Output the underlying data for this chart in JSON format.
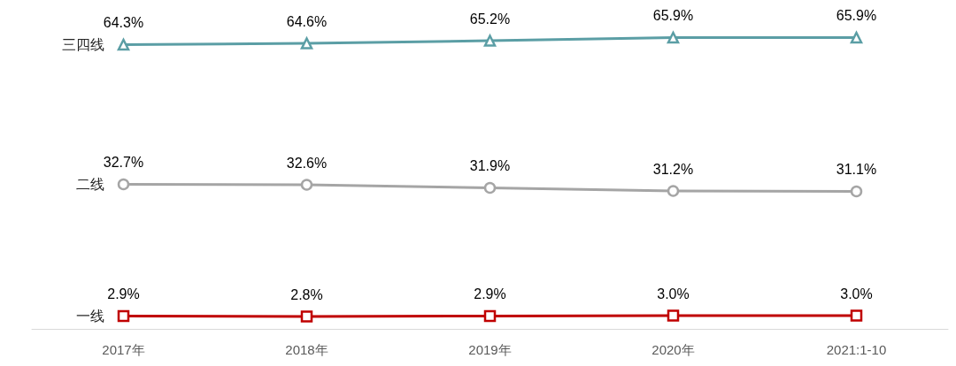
{
  "chart_data": {
    "type": "line",
    "categories": [
      "2017年",
      "2018年",
      "2019年",
      "2020年",
      "2021:1-10"
    ],
    "series": [
      {
        "name": "三四线",
        "color": "#5b9ea5",
        "marker": "triangle",
        "values": [
          64.3,
          64.6,
          65.2,
          65.9,
          65.9
        ],
        "value_labels": [
          "64.3%",
          "64.6%",
          "65.2%",
          "65.9%",
          "65.9%"
        ]
      },
      {
        "name": "二线",
        "color": "#a5a5a5",
        "marker": "circle",
        "values": [
          32.7,
          32.6,
          31.9,
          31.2,
          31.1
        ],
        "value_labels": [
          "32.7%",
          "32.6%",
          "31.9%",
          "31.2%",
          "31.1%"
        ]
      },
      {
        "name": "一线",
        "color": "#c00000",
        "marker": "square",
        "values": [
          2.9,
          2.8,
          2.9,
          3.0,
          3.0
        ],
        "value_labels": [
          "2.9%",
          "2.8%",
          "2.9%",
          "3.0%",
          "3.0%"
        ]
      }
    ]
  }
}
